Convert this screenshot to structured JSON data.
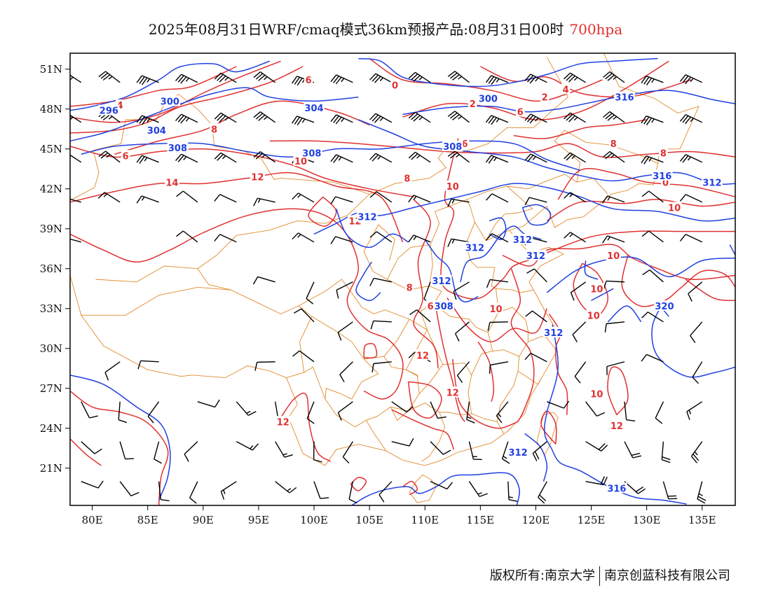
{
  "title": {
    "text": "2025年08月31日WRF/cmaq模式36km预报产品:08月31日00时",
    "level": "700hpa"
  },
  "axes": {
    "lon_ticks": [
      "80E",
      "85E",
      "90E",
      "95E",
      "100E",
      "105E",
      "110E",
      "115E",
      "120E",
      "125E",
      "130E",
      "135E"
    ],
    "lat_ticks": [
      "51N",
      "48N",
      "45N",
      "42N",
      "39N",
      "36N",
      "33N",
      "30N",
      "27N",
      "24N",
      "21N"
    ]
  },
  "colors": {
    "geopotential": "#2040e0",
    "temperature": "#e03030",
    "border": "#e08a2a",
    "wind": "#000000"
  },
  "contour_labels": {
    "geopotential": [
      "296",
      "300",
      "304",
      "304",
      "308",
      "308",
      "308",
      "300",
      "312",
      "312",
      "312",
      "312",
      "312",
      "308",
      "312",
      "316",
      "320",
      "316",
      "312",
      "316",
      "312"
    ],
    "temperature": [
      "0",
      "2",
      "4",
      "6",
      "8",
      "10",
      "6",
      "8",
      "14",
      "12",
      "12",
      "10",
      "8",
      "6",
      "0",
      "2",
      "4",
      "6",
      "8",
      "6",
      "8",
      "10",
      "10",
      "10",
      "10",
      "10",
      "12",
      "12",
      "12",
      "10",
      "12",
      "10"
    ]
  },
  "footer": {
    "left": "版权所有:南京大学",
    "right": "南京创蓝科技有限公司"
  }
}
